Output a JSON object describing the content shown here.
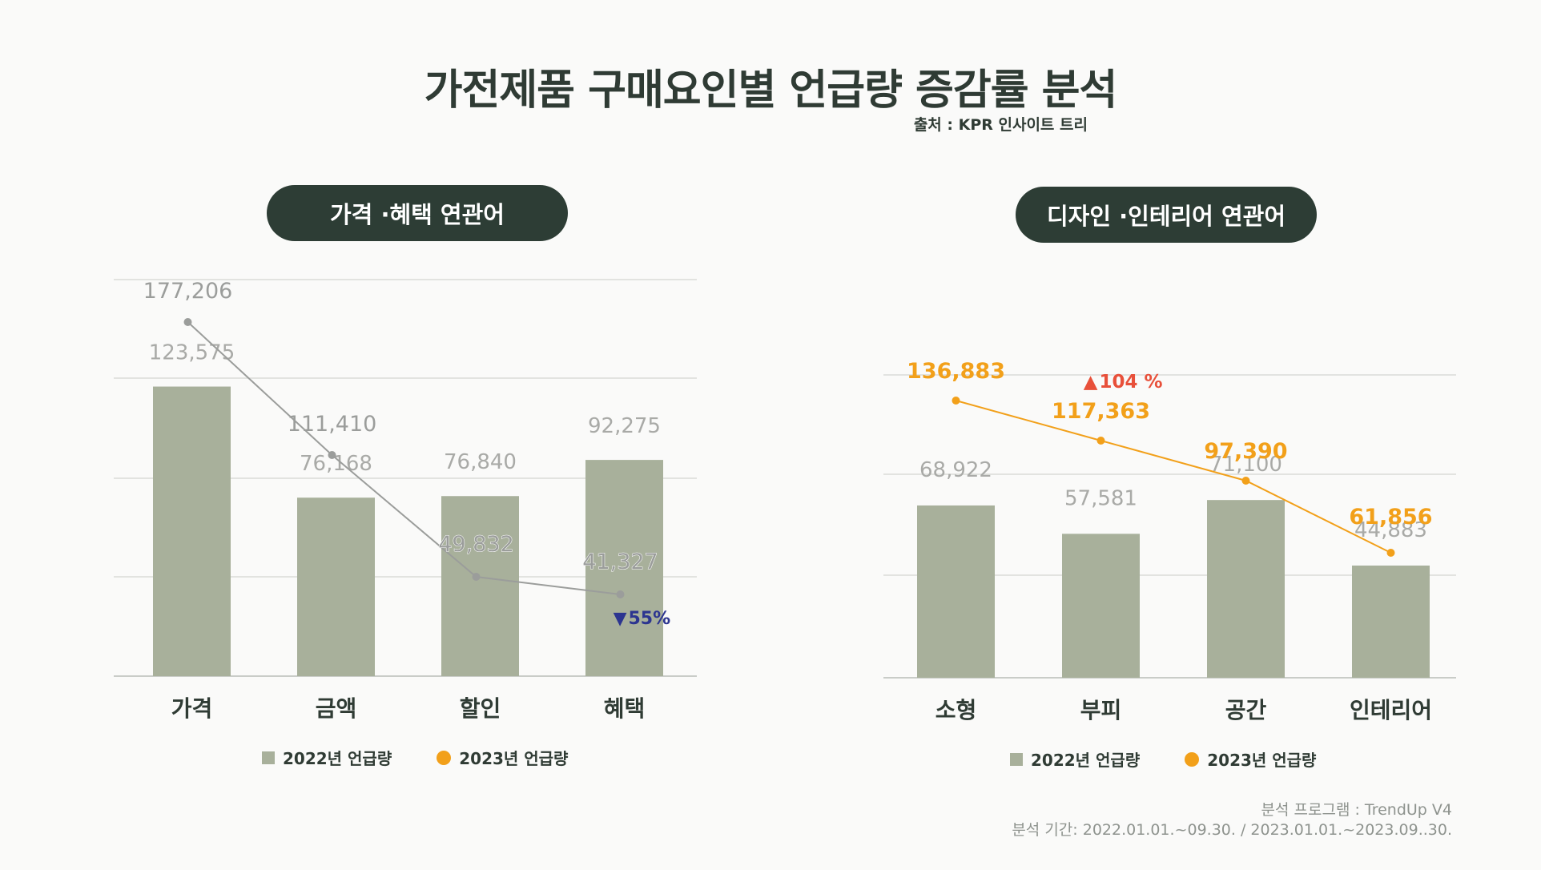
{
  "title": "가전제품 구매요인별 언급량 증감률 분석",
  "source": "출처 : KPR 인사이트 트리",
  "footer": {
    "program": "분석 프로그램 : TrendUp V4",
    "period": "분석 기간: 2022.01.01.~09.30. / 2023.01.01.~2023.09..30."
  },
  "colors": {
    "bar": "#a8b09b",
    "line_left": "#9b9d9b",
    "line_right": "#f2a01a",
    "up": "#e8503a",
    "down": "#2c3590",
    "pill": "#2d3d35"
  },
  "chart_data": [
    {
      "type": "bar",
      "title": "가격 ·혜택 연관어",
      "categories": [
        "가격",
        "금액",
        "할인",
        "혜택"
      ],
      "series": [
        {
          "name": "2022년 언급량",
          "type": "bar",
          "values": [
            123575,
            76168,
            76840,
            92275
          ],
          "labels": [
            "123,575",
            "76,168",
            "76,840",
            "92,275"
          ]
        },
        {
          "name": "2023년 언급량",
          "type": "line",
          "values": [
            177206,
            111410,
            49832,
            41327
          ],
          "labels": [
            "177,206",
            "111,410",
            "49,832",
            "41,327"
          ]
        }
      ],
      "annotation": {
        "category": "혜택",
        "direction": "down",
        "text": "55%",
        "symbol": "▼"
      },
      "ylim": [
        0,
        200000
      ],
      "legend": [
        "2022년 언급량",
        "2023년 언급량"
      ],
      "legend_position": "bottom"
    },
    {
      "type": "bar",
      "title": "디자인 ·인테리어 연관어",
      "categories": [
        "소형",
        "부피",
        "공간",
        "인테리어"
      ],
      "series": [
        {
          "name": "2022년 언급량",
          "type": "bar",
          "values": [
            68922,
            57581,
            71100,
            44883
          ],
          "labels": [
            "68,922",
            "57,581",
            "71,100",
            "44,883"
          ]
        },
        {
          "name": "2023년 언급량",
          "type": "line",
          "values": [
            136883,
            117363,
            97390,
            61856
          ],
          "labels": [
            "136,883",
            "117,363",
            "97,390",
            "61,856"
          ]
        }
      ],
      "annotation": {
        "category": "부피",
        "direction": "up",
        "text": "104 %",
        "symbol": "▲"
      },
      "ylim": [
        0,
        150000
      ],
      "legend": [
        "2022년 언급량",
        "2023년 언급량"
      ],
      "legend_position": "bottom"
    }
  ]
}
